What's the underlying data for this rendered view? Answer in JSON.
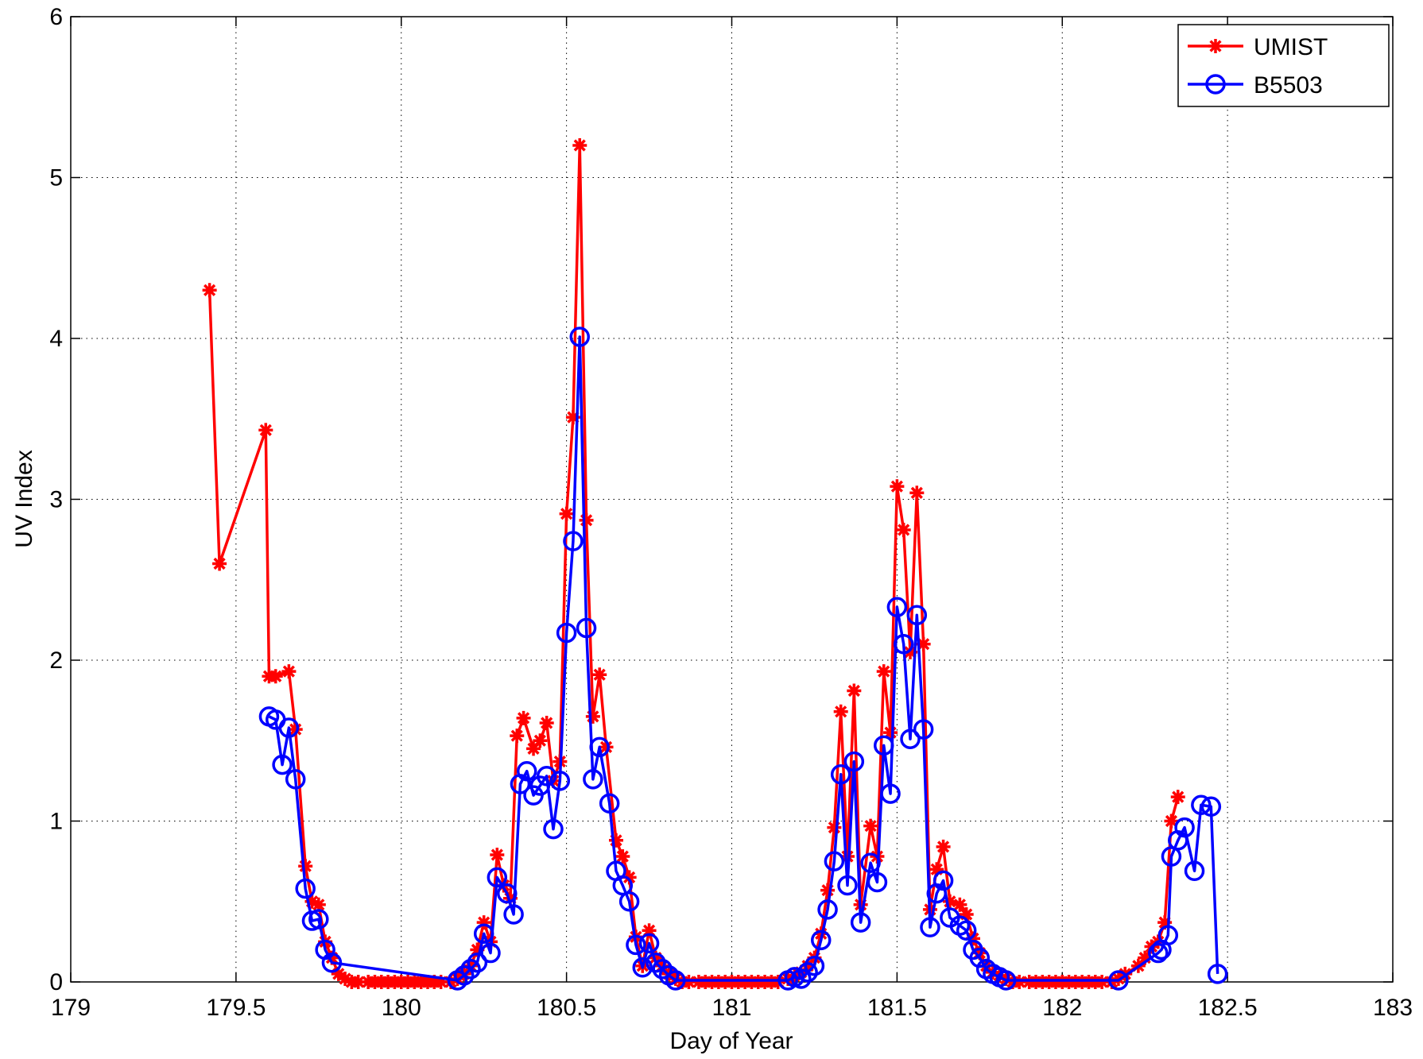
{
  "chart_data": {
    "type": "line",
    "xlabel": "Day of Year",
    "ylabel": "UV Index",
    "xlim": [
      179,
      183
    ],
    "ylim": [
      0,
      6
    ],
    "xticks": [
      179,
      179.5,
      180,
      180.5,
      181,
      181.5,
      182,
      182.5,
      183
    ],
    "yticks": [
      0,
      1,
      2,
      3,
      4,
      5,
      6
    ],
    "grid": true,
    "legend": "northeast",
    "series": [
      {
        "name": "UMIST",
        "color": "#ff0000",
        "marker": "asterisk",
        "x": [
          179.42,
          179.45,
          179.59,
          179.6,
          179.62,
          179.66,
          179.68,
          179.71,
          179.73,
          179.75,
          179.77,
          179.79,
          179.81,
          179.83,
          179.85,
          179.87,
          179.9,
          179.92,
          179.94,
          179.96,
          179.98,
          180.0,
          180.02,
          180.04,
          180.06,
          180.08,
          180.1,
          180.12,
          180.15,
          180.17,
          180.19,
          180.21,
          180.23,
          180.25,
          180.27,
          180.29,
          180.31,
          180.33,
          180.35,
          180.37,
          180.4,
          180.42,
          180.44,
          180.46,
          180.48,
          180.5,
          180.52,
          180.54,
          180.56,
          180.58,
          180.6,
          180.62,
          180.65,
          180.67,
          180.69,
          180.71,
          180.73,
          180.75,
          180.77,
          180.79,
          180.81,
          180.83,
          180.85,
          180.87,
          180.9,
          180.92,
          180.94,
          180.96,
          180.98,
          181.0,
          181.02,
          181.04,
          181.06,
          181.08,
          181.1,
          181.12,
          181.14,
          181.17,
          181.19,
          181.21,
          181.23,
          181.25,
          181.27,
          181.29,
          181.31,
          181.33,
          181.35,
          181.37,
          181.39,
          181.42,
          181.44,
          181.46,
          181.48,
          181.5,
          181.52,
          181.54,
          181.56,
          181.58,
          181.6,
          181.62,
          181.64,
          181.66,
          181.69,
          181.71,
          181.73,
          181.75,
          181.77,
          181.79,
          181.81,
          181.83,
          181.85,
          181.87,
          181.9,
          181.92,
          181.94,
          181.96,
          181.98,
          182.0,
          182.02,
          182.04,
          182.06,
          182.08,
          182.1,
          182.12,
          182.15,
          182.17,
          182.19,
          182.23,
          182.25,
          182.27,
          182.29,
          182.31,
          182.33,
          182.35
        ],
        "values": [
          4.3,
          2.6,
          3.43,
          1.9,
          1.9,
          1.93,
          1.57,
          0.72,
          0.5,
          0.48,
          0.25,
          0.15,
          0.05,
          0.02,
          0,
          0,
          0,
          0,
          0,
          0,
          0,
          0,
          0,
          0,
          0,
          0,
          0,
          0,
          0,
          0.02,
          0.05,
          0.1,
          0.2,
          0.37,
          0.25,
          0.79,
          0.6,
          0.52,
          1.53,
          1.64,
          1.45,
          1.5,
          1.61,
          1.25,
          1.37,
          2.91,
          3.51,
          5.2,
          2.87,
          1.65,
          1.91,
          1.46,
          0.88,
          0.78,
          0.65,
          0.28,
          0.1,
          0.32,
          0.15,
          0.1,
          0.05,
          0.02,
          0,
          0,
          0,
          0,
          0,
          0,
          0,
          0,
          0,
          0,
          0,
          0,
          0,
          0,
          0,
          0.02,
          0.04,
          0.06,
          0.1,
          0.15,
          0.3,
          0.57,
          0.96,
          1.68,
          0.78,
          1.81,
          0.48,
          0.97,
          0.78,
          1.93,
          1.55,
          3.08,
          2.81,
          2.05,
          3.04,
          2.1,
          0.45,
          0.7,
          0.84,
          0.5,
          0.48,
          0.42,
          0.27,
          0.18,
          0.1,
          0.06,
          0.04,
          0.02,
          0,
          0,
          0,
          0,
          0,
          0,
          0,
          0,
          0,
          0,
          0,
          0,
          0,
          0,
          0,
          0.02,
          0.05,
          0.1,
          0.15,
          0.22,
          0.25,
          0.37,
          1.0,
          1.15
        ]
      },
      {
        "name": "B5503",
        "color": "#0000ff",
        "marker": "circle",
        "x": [
          179.6,
          179.62,
          179.64,
          179.66,
          179.68,
          179.71,
          179.73,
          179.75,
          179.77,
          179.79,
          180.17,
          180.19,
          180.21,
          180.23,
          180.25,
          180.27,
          180.29,
          180.32,
          180.34,
          180.36,
          180.38,
          180.4,
          180.42,
          180.44,
          180.46,
          180.48,
          180.5,
          180.52,
          180.54,
          180.56,
          180.58,
          180.6,
          180.63,
          180.65,
          180.67,
          180.69,
          180.71,
          180.73,
          180.75,
          180.77,
          180.79,
          180.81,
          180.83,
          181.17,
          181.19,
          181.21,
          181.23,
          181.25,
          181.27,
          181.29,
          181.31,
          181.33,
          181.35,
          181.37,
          181.39,
          181.42,
          181.44,
          181.46,
          181.48,
          181.5,
          181.52,
          181.54,
          181.56,
          181.58,
          181.6,
          181.62,
          181.64,
          181.66,
          181.69,
          181.71,
          181.73,
          181.75,
          181.77,
          181.79,
          181.81,
          181.83,
          182.17,
          182.29,
          182.3,
          182.32,
          182.33,
          182.35,
          182.37,
          182.4,
          182.42,
          182.45,
          182.47
        ],
        "values": [
          1.65,
          1.63,
          1.35,
          1.58,
          1.26,
          0.58,
          0.38,
          0.39,
          0.2,
          0.12,
          0.01,
          0.04,
          0.08,
          0.12,
          0.3,
          0.18,
          0.65,
          0.55,
          0.42,
          1.23,
          1.31,
          1.16,
          1.22,
          1.28,
          0.95,
          1.25,
          2.17,
          2.74,
          4.01,
          2.2,
          1.26,
          1.46,
          1.11,
          0.69,
          0.6,
          0.5,
          0.23,
          0.09,
          0.24,
          0.12,
          0.08,
          0.04,
          0.01,
          0.01,
          0.03,
          0.02,
          0.06,
          0.1,
          0.26,
          0.45,
          0.75,
          1.29,
          0.6,
          1.37,
          0.37,
          0.74,
          0.62,
          1.47,
          1.17,
          2.33,
          2.1,
          1.51,
          2.28,
          1.57,
          0.34,
          0.55,
          0.63,
          0.4,
          0.35,
          0.32,
          0.2,
          0.15,
          0.08,
          0.05,
          0.03,
          0.01,
          0.01,
          0.18,
          0.2,
          0.29,
          0.78,
          0.88,
          0.96,
          0.69,
          1.1,
          1.09,
          0.05
        ]
      }
    ]
  }
}
